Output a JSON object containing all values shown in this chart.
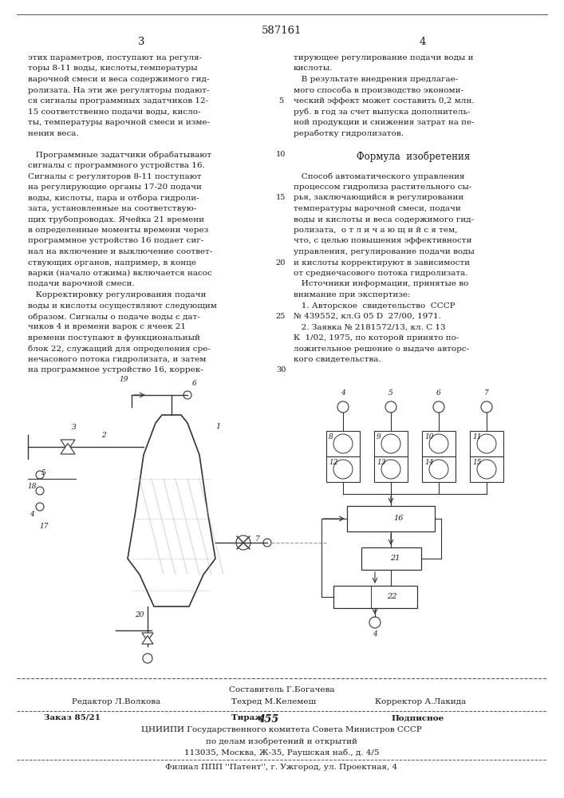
{
  "page_number": "587161",
  "page_left": "3",
  "page_right": "4",
  "background_color": "#ffffff",
  "text_color": "#1a1a1a",
  "left_col_lines": [
    "этих параметров, поступают на регуля-",
    "торы 8-11 воды, кислоты,температуры",
    "варочной смеси и веса содержимого гид-",
    "ролизата. На эти же регуляторы подают-",
    "ся сигналы программных задатчиков 12-",
    "15 соответственно подачи воды, кисло-",
    "ты, температуры варочной смеси и изме-",
    "нения веса.",
    "",
    "   Программные задатчики обрабатывают",
    "сигналы с программного устройства 16.",
    "Сигналы с регуляторов 8-11 поступают",
    "на регулирующие органы 17-20 подачи",
    "воды, кислоты, пара и отбора гидроли-",
    "зата, установленные на соответствую-",
    "щих трубопроводах. Ячейка 21 времени",
    "в определенные моменты времени через",
    "программное устройство 16 подает сиг-",
    "нал на включение и выключение соответ-",
    "ствующих органов, например, в конце",
    "варки (начало отжима) включается насос",
    "подачи варочной смеси.",
    "   Корректировку регулирования подачи",
    "воды и кислоты осуществляют следующим",
    "образом. Сигналы о подаче воды с дат-",
    "чиков 4 и времени варок с ячеек 21",
    "времени поступают в функциональный",
    "блок 22, служащий для определения сре-",
    "нечасового потока гидролизата, и затем",
    "на программное устройство 16, коррек-"
  ],
  "right_col_lines": [
    "тирующее регулирование подачи воды и",
    "кислоты.",
    "   В результате внедрения предлагае-",
    "мого способа в производство экономи-",
    "ческий эффект может составить 0,2 млн.",
    "руб. в год за счет выпуска дополнитель-",
    "ной продукции и снижения затрат на пе-",
    "реработку гидролизатов.",
    "",
    "Формула  изобретения",
    "",
    "   Способ автоматического управления",
    "процессом гидролиза растительного сы-",
    "рья, заключающийся в регулировании",
    "температуры варочной смеси, подачи",
    "воды и кислоты и веса содержимого гид-",
    "ролизата,  о т л и ч а ю щ и й с я тем,",
    "что, с целью повышения эффективности",
    "управления, регулирование подачи воды",
    "и кислоты корректируют в зависимости",
    "от среднечасового потока гидролизата.",
    "   Источники информации, принятые во",
    "внимание при экспертизе:",
    "   1. Авторское  свидетельство  СССР",
    "№ 439552, кл.G 05 D  27/00, 1971.",
    "   2. Заявка № 2181572/13, кл. С 13",
    "К  1/02, 1975, по которой принято по-",
    "ложительное решение о выдаче авторс-",
    "кого свидетельства."
  ],
  "line_numbers": [
    "5",
    "10",
    "15",
    "20",
    "25",
    "30"
  ],
  "line_numbers_rows": [
    4,
    9,
    13,
    19,
    24,
    29
  ],
  "editor_line": "Редактор Л.Волкова",
  "compiler_line": "Составитель Г.Богачева",
  "techred_line": "Техред М.Келемеш",
  "corrector_line": "Корректор А.Лакида",
  "order_line": "Заказ 85/21",
  "tirazh_label": "Тираж ",
  "tirazh_num": "455",
  "podpisnoe_line": "Подписное",
  "org_line": "ЦНИИПИ Государственного комитета Совета Министров СССР",
  "org_line2": "по делам изобретений и открытий",
  "address_line": "113035, Москва, Ж-35, Раушская наб., д. 4/5",
  "filial_line": "Филиал ППП ''Патент'', г. Ужгород, ул. Проектная, 4"
}
